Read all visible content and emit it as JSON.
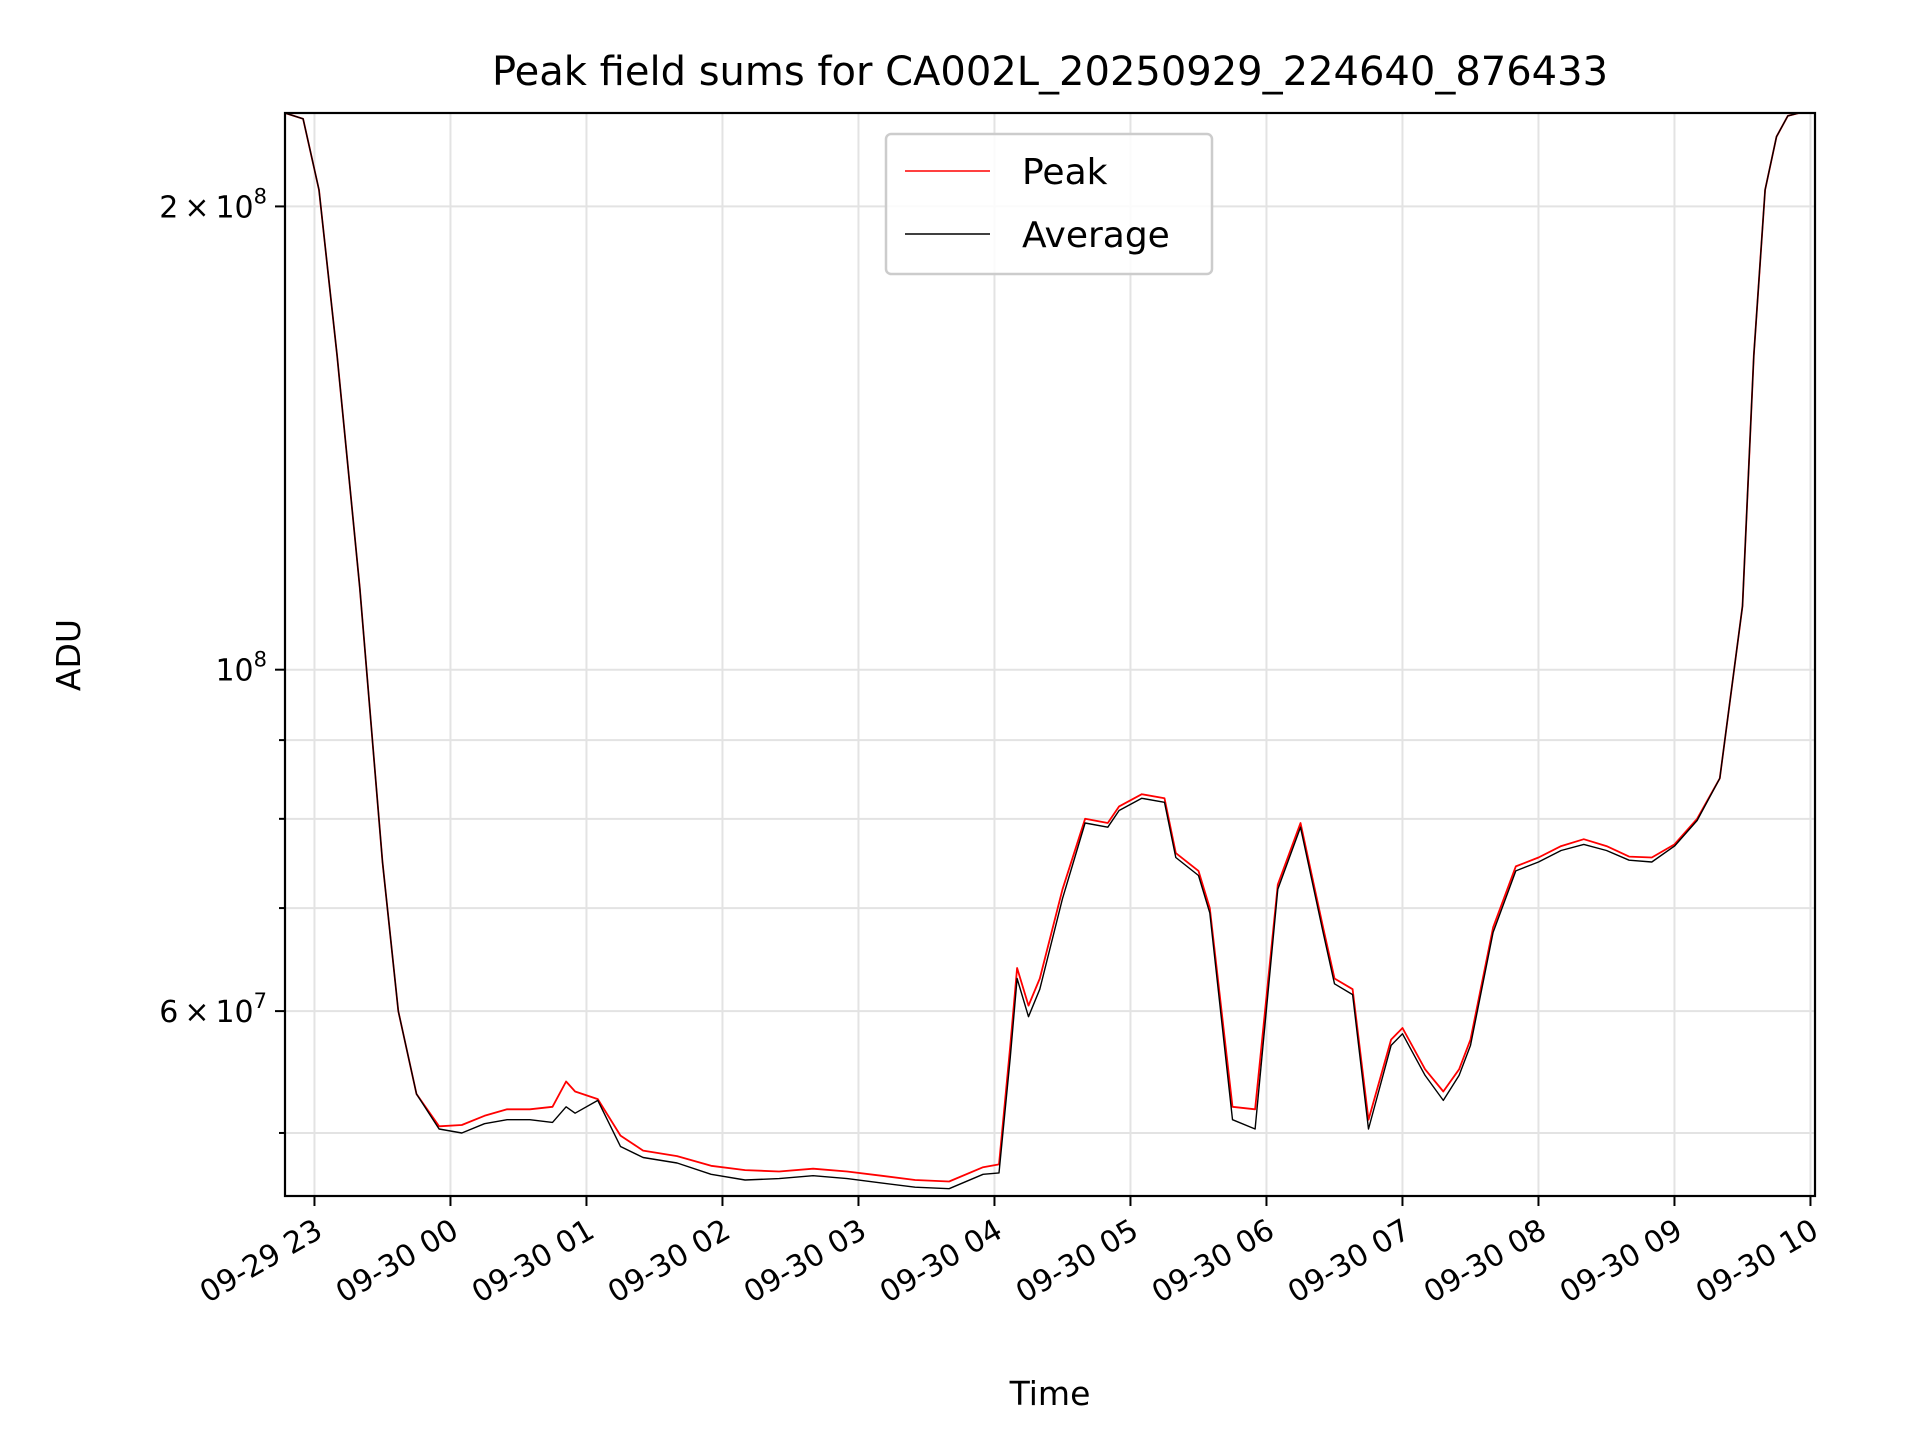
{
  "chart_data": {
    "type": "line",
    "title": "Peak field sums for CA002L_20250929_224640_876433",
    "xlabel": "Time",
    "ylabel": "ADU",
    "yscale": "log",
    "ylim": [
      45500000,
      230000000
    ],
    "xlim": [
      "2025-09-29 22:47",
      "2025-09-30 10:02"
    ],
    "grid": true,
    "legend_position": "upper-center",
    "x_ticks": [
      {
        "time": "2025-09-29 23:00",
        "label": "09-29 23"
      },
      {
        "time": "2025-09-30 00:00",
        "label": "09-30 00"
      },
      {
        "time": "2025-09-30 01:00",
        "label": "09-30 01"
      },
      {
        "time": "2025-09-30 02:00",
        "label": "09-30 02"
      },
      {
        "time": "2025-09-30 03:00",
        "label": "09-30 03"
      },
      {
        "time": "2025-09-30 04:00",
        "label": "09-30 04"
      },
      {
        "time": "2025-09-30 05:00",
        "label": "09-30 05"
      },
      {
        "time": "2025-09-30 06:00",
        "label": "09-30 06"
      },
      {
        "time": "2025-09-30 07:00",
        "label": "09-30 07"
      },
      {
        "time": "2025-09-30 08:00",
        "label": "09-30 08"
      },
      {
        "time": "2025-09-30 09:00",
        "label": "09-30 09"
      },
      {
        "time": "2025-09-30 10:00",
        "label": "09-30 10"
      }
    ],
    "y_ticks_major": [
      {
        "value": 200000000,
        "mantissa": "2",
        "exponent": "8"
      },
      {
        "value": 100000000,
        "mantissa": "",
        "exponent": "8"
      },
      {
        "value": 60000000,
        "mantissa": "6",
        "exponent": "7"
      }
    ],
    "y_ticks_minor": [
      50000000,
      70000000,
      80000000,
      90000000
    ],
    "series": [
      {
        "name": "Peak",
        "color": "#ff0000",
        "x": [
          "2025-09-29 22:47",
          "2025-09-29 22:55",
          "2025-09-29 23:02",
          "2025-09-29 23:10",
          "2025-09-29 23:20",
          "2025-09-29 23:30",
          "2025-09-29 23:37",
          "2025-09-29 23:45",
          "2025-09-29 23:55",
          "2025-09-30 00:05",
          "2025-09-30 00:15",
          "2025-09-30 00:25",
          "2025-09-30 00:35",
          "2025-09-30 00:45",
          "2025-09-30 00:51",
          "2025-09-30 00:55",
          "2025-09-30 01:05",
          "2025-09-30 01:15",
          "2025-09-30 01:25",
          "2025-09-30 01:40",
          "2025-09-30 01:55",
          "2025-09-30 02:10",
          "2025-09-30 02:25",
          "2025-09-30 02:40",
          "2025-09-30 02:55",
          "2025-09-30 03:10",
          "2025-09-30 03:25",
          "2025-09-30 03:40",
          "2025-09-30 03:55",
          "2025-09-30 04:02",
          "2025-09-30 04:07",
          "2025-09-30 04:10",
          "2025-09-30 04:15",
          "2025-09-30 04:20",
          "2025-09-30 04:30",
          "2025-09-30 04:40",
          "2025-09-30 04:50",
          "2025-09-30 04:55",
          "2025-09-30 05:05",
          "2025-09-30 05:15",
          "2025-09-30 05:20",
          "2025-09-30 05:30",
          "2025-09-30 05:35",
          "2025-09-30 05:45",
          "2025-09-30 05:55",
          "2025-09-30 06:05",
          "2025-09-30 06:15",
          "2025-09-30 06:25",
          "2025-09-30 06:30",
          "2025-09-30 06:38",
          "2025-09-30 06:45",
          "2025-09-30 06:55",
          "2025-09-30 07:00",
          "2025-09-30 07:10",
          "2025-09-30 07:18",
          "2025-09-30 07:25",
          "2025-09-30 07:30",
          "2025-09-30 07:40",
          "2025-09-30 07:50",
          "2025-09-30 08:00",
          "2025-09-30 08:10",
          "2025-09-30 08:20",
          "2025-09-30 08:30",
          "2025-09-30 08:40",
          "2025-09-30 08:50",
          "2025-09-30 09:00",
          "2025-09-30 09:10",
          "2025-09-30 09:20",
          "2025-09-30 09:30",
          "2025-09-30 09:35",
          "2025-09-30 09:40",
          "2025-09-30 09:45",
          "2025-09-30 09:50",
          "2025-09-30 09:55",
          "2025-09-30 10:02"
        ],
        "y": [
          230000000,
          228000000,
          205000000,
          160000000,
          113000000,
          75000000,
          60000000,
          53000000,
          50500000,
          50600000,
          51300000,
          51800000,
          51800000,
          52000000,
          54000000,
          53200000,
          52600000,
          49800000,
          48700000,
          48300000,
          47600000,
          47300000,
          47200000,
          47400000,
          47200000,
          46900000,
          46600000,
          46500000,
          47500000,
          47700000,
          57000000,
          64000000,
          60500000,
          63000000,
          72000000,
          80000000,
          79500000,
          81500000,
          83000000,
          82500000,
          76000000,
          74000000,
          70000000,
          52000000,
          51800000,
          72500000,
          79500000,
          68000000,
          63000000,
          62000000,
          51000000,
          57500000,
          58500000,
          55000000,
          53200000,
          55000000,
          57500000,
          68000000,
          74500000,
          75500000,
          76800000,
          77600000,
          76800000,
          75600000,
          75500000,
          77000000,
          80000000,
          85000000,
          110000000,
          160000000,
          205000000,
          222000000,
          229000000,
          230000000,
          230000000
        ]
      },
      {
        "name": "Average",
        "color": "#000000",
        "x": [
          "2025-09-29 22:47",
          "2025-09-29 22:55",
          "2025-09-29 23:02",
          "2025-09-29 23:10",
          "2025-09-29 23:20",
          "2025-09-29 23:30",
          "2025-09-29 23:37",
          "2025-09-29 23:45",
          "2025-09-29 23:55",
          "2025-09-30 00:05",
          "2025-09-30 00:15",
          "2025-09-30 00:25",
          "2025-09-30 00:35",
          "2025-09-30 00:45",
          "2025-09-30 00:51",
          "2025-09-30 00:55",
          "2025-09-30 01:05",
          "2025-09-30 01:15",
          "2025-09-30 01:25",
          "2025-09-30 01:40",
          "2025-09-30 01:55",
          "2025-09-30 02:10",
          "2025-09-30 02:25",
          "2025-09-30 02:40",
          "2025-09-30 02:55",
          "2025-09-30 03:10",
          "2025-09-30 03:25",
          "2025-09-30 03:40",
          "2025-09-30 03:55",
          "2025-09-30 04:02",
          "2025-09-30 04:07",
          "2025-09-30 04:10",
          "2025-09-30 04:15",
          "2025-09-30 04:20",
          "2025-09-30 04:30",
          "2025-09-30 04:40",
          "2025-09-30 04:50",
          "2025-09-30 04:55",
          "2025-09-30 05:05",
          "2025-09-30 05:15",
          "2025-09-30 05:20",
          "2025-09-30 05:30",
          "2025-09-30 05:35",
          "2025-09-30 05:45",
          "2025-09-30 05:55",
          "2025-09-30 06:05",
          "2025-09-30 06:15",
          "2025-09-30 06:25",
          "2025-09-30 06:30",
          "2025-09-30 06:38",
          "2025-09-30 06:45",
          "2025-09-30 06:55",
          "2025-09-30 07:00",
          "2025-09-30 07:10",
          "2025-09-30 07:18",
          "2025-09-30 07:25",
          "2025-09-30 07:30",
          "2025-09-30 07:40",
          "2025-09-30 07:50",
          "2025-09-30 08:00",
          "2025-09-30 08:10",
          "2025-09-30 08:20",
          "2025-09-30 08:30",
          "2025-09-30 08:40",
          "2025-09-30 08:50",
          "2025-09-30 09:00",
          "2025-09-30 09:10",
          "2025-09-30 09:20",
          "2025-09-30 09:30",
          "2025-09-30 09:35",
          "2025-09-30 09:40",
          "2025-09-30 09:45",
          "2025-09-30 09:50",
          "2025-09-30 09:55",
          "2025-09-30 10:02"
        ],
        "y": [
          230000000,
          228000000,
          205000000,
          160000000,
          113000000,
          75000000,
          60000000,
          53000000,
          50300000,
          50000000,
          50700000,
          51000000,
          51000000,
          50800000,
          52000000,
          51500000,
          52500000,
          49000000,
          48200000,
          47800000,
          47000000,
          46600000,
          46700000,
          46900000,
          46700000,
          46400000,
          46100000,
          46000000,
          47000000,
          47100000,
          56000000,
          63000000,
          59500000,
          62000000,
          71000000,
          79500000,
          79000000,
          81000000,
          82500000,
          82000000,
          75500000,
          73500000,
          69500000,
          51000000,
          50300000,
          72000000,
          79000000,
          67500000,
          62500000,
          61500000,
          50300000,
          57000000,
          58000000,
          54500000,
          52500000,
          54500000,
          57000000,
          67500000,
          74000000,
          75000000,
          76300000,
          77000000,
          76300000,
          75200000,
          75000000,
          76800000,
          79800000,
          85000000,
          110000000,
          160000000,
          205000000,
          222000000,
          229000000,
          230000000,
          230000000
        ]
      }
    ]
  }
}
